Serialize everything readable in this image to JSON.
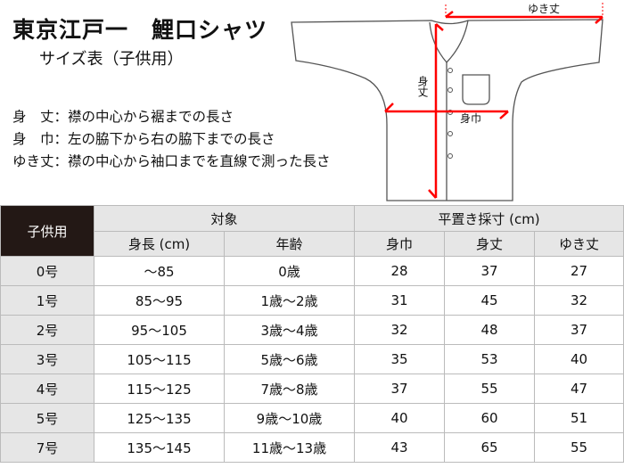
{
  "title": "東京江戸一　鯉口シャツ",
  "subtitle": "サイズ表（子供用）",
  "definitions": [
    "身　丈：襟の中心から裾までの長さ",
    "身　巾：左の脇下から右の脇下までの長さ",
    "ゆき丈：襟の中心から袖口までを直線で測った長さ"
  ],
  "diagram": {
    "yuki_label": "ゆき丈",
    "mitake_label": "身丈",
    "mihaba_label": "身巾",
    "arrow_color": "#ff0000"
  },
  "table": {
    "corner": "子供用",
    "group_target": "対象",
    "group_measure": "平置き採寸 (cm)",
    "columns": [
      "身長 (cm)",
      "年齢",
      "身巾",
      "身丈",
      "ゆき丈"
    ],
    "rows": [
      [
        "0号",
        "～85",
        "0歳",
        "28",
        "37",
        "27"
      ],
      [
        "1号",
        "85～95",
        "1歳～2歳",
        "31",
        "45",
        "32"
      ],
      [
        "2号",
        "95～105",
        "3歳～4歳",
        "32",
        "48",
        "37"
      ],
      [
        "3号",
        "105～115",
        "5歳～6歳",
        "35",
        "53",
        "40"
      ],
      [
        "4号",
        "115～125",
        "7歳～8歳",
        "37",
        "55",
        "47"
      ],
      [
        "5号",
        "125～135",
        "9歳～10歳",
        "40",
        "60",
        "51"
      ],
      [
        "7号",
        "135～145",
        "11歳～13歳",
        "43",
        "65",
        "55"
      ]
    ]
  }
}
